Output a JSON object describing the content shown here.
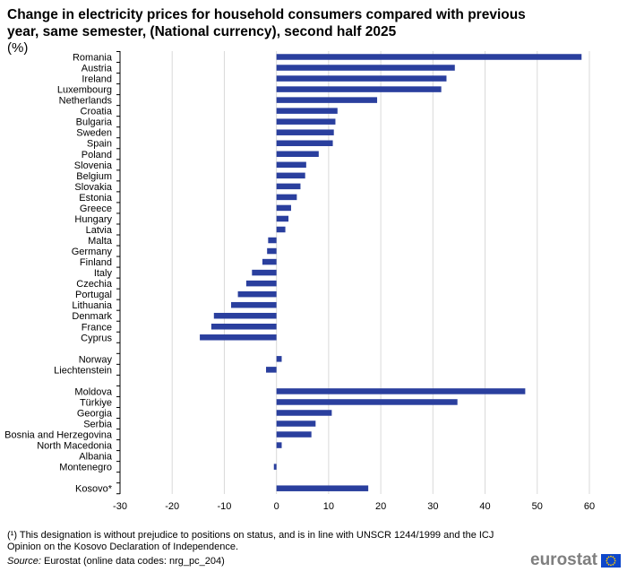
{
  "title": "Change in electricity prices for household consumers compared with previous year, same semester, (National currency), second half 2025",
  "subtitle": "(%)",
  "footnote": "(¹) This designation is without prejudice to positions on status, and is in line with UNSCR 1244/1999 and the ICJ Opinion on the Kosovo Declaration of Independence.",
  "source_label": "Source:",
  "source_text": " Eurostat (online data codes: nrg_pc_204)",
  "logo_text": "eurostat",
  "colors": {
    "bar": "#2A3F9E",
    "grid": "#d9d9d9",
    "flag_blue": "#0E47CB",
    "flag_star": "#FFCC00"
  },
  "chart_data": {
    "type": "bar",
    "orientation": "horizontal",
    "title": "Change in electricity prices for household consumers compared with previous year, same semester, (National currency), second half 2025",
    "subtitle": "(%)",
    "xlim": [
      -30,
      60
    ],
    "xticks": [
      -30,
      -20,
      -10,
      0,
      10,
      20,
      30,
      40,
      50,
      60
    ],
    "grid": "vertical",
    "groups": [
      {
        "categories": [
          "Romania",
          "Austria",
          "Ireland",
          "Luxembourg",
          "Netherlands",
          "Croatia",
          "Bulgaria",
          "Sweden",
          "Spain",
          "Poland",
          "Slovenia",
          "Belgium",
          "Slovakia",
          "Estonia",
          "Greece",
          "Hungary",
          "Latvia",
          "Malta",
          "Germany",
          "Finland",
          "Italy",
          "Czechia",
          "Portugal",
          "Lithuania",
          "Denmark",
          "France",
          "Cyprus"
        ],
        "values": [
          58.5,
          34.2,
          32.6,
          31.6,
          19.3,
          11.7,
          11.3,
          11.0,
          10.8,
          8.1,
          5.7,
          5.5,
          4.6,
          3.9,
          2.8,
          2.3,
          1.7,
          -1.6,
          -1.8,
          -2.7,
          -4.7,
          -5.8,
          -7.4,
          -8.7,
          -12.0,
          -12.5,
          -14.7
        ]
      },
      {
        "categories": [
          "Norway",
          "Liechtenstein"
        ],
        "values": [
          1.0,
          -2.0
        ]
      },
      {
        "categories": [
          "Moldova",
          "Türkiye",
          "Georgia",
          "Serbia",
          "Bosnia and Herzegovina",
          "North Macedonia",
          "Albania",
          "Montenegro"
        ],
        "values": [
          47.7,
          34.7,
          10.6,
          7.5,
          6.7,
          1.0,
          0,
          -0.5
        ]
      },
      {
        "categories": [
          "Kosovo*"
        ],
        "values": [
          17.6
        ]
      }
    ]
  }
}
